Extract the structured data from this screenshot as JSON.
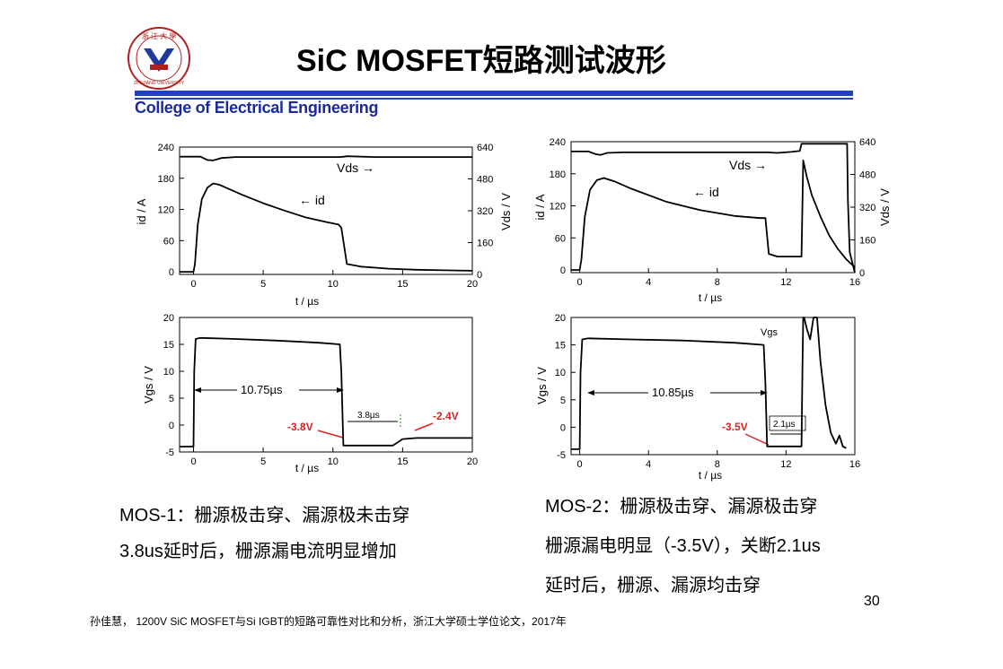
{
  "header": {
    "title": "SiC MOSFET短路测试波形",
    "college": "College of Electrical Engineering",
    "logo_text_top": "浙 江 大 學",
    "logo_text_bottom": "ZHEJIANG UNIVERSITY"
  },
  "captions": {
    "mos1_line1": "MOS-1：栅源极击穿、漏源极未击穿",
    "mos1_line2": "3.8us延时后，栅源漏电流明显增加",
    "mos2_line1": "MOS-2：栅源极击穿、漏源极击穿",
    "mos2_line2": "栅源漏电明显（-3.5V），关断2.1us",
    "mos2_line3": "延时后，栅源、漏源均击穿"
  },
  "page_number": "30",
  "citation": "孙佳慧， 1200V SiC MOSFET与Si IGBT的短路可靠性对比和分析，浙江大学硕士学位论文，2017年",
  "colors": {
    "accent": "#1f3fc6",
    "college_text": "#1a2a9a",
    "annotation_red": "#e02020",
    "annotation_green": "#2a8a2a"
  },
  "chart_data": [
    {
      "type": "line",
      "xlabel": "t / µs",
      "ylabel": "id / A",
      "y2label": "Vds / V",
      "xlim": [
        -1,
        20
      ],
      "xticks": [
        "0",
        "5",
        "10",
        "15",
        "20"
      ],
      "ylim": [
        -5,
        240
      ],
      "yticks": [
        "0",
        "60",
        "120",
        "180",
        "240"
      ],
      "y2lim": [
        0,
        640
      ],
      "y2ticks": [
        "0",
        "160",
        "320",
        "480",
        "640"
      ],
      "series": [
        {
          "name": "Vds",
          "axis": "right",
          "x": [
            -1,
            0.5,
            1.0,
            1.4,
            2.0,
            3,
            5,
            8,
            10.5,
            10.8,
            11,
            13,
            16,
            20
          ],
          "y": [
            592,
            592,
            575,
            573,
            585,
            590,
            590,
            590,
            590,
            592,
            594,
            590,
            590,
            590
          ]
        },
        {
          "name": "id",
          "axis": "left",
          "x": [
            -1,
            0,
            0.1,
            0.3,
            0.6,
            1.0,
            1.4,
            1.8,
            2.5,
            3.5,
            5,
            6.5,
            8,
            9.5,
            10.2,
            10.4,
            10.6,
            11,
            12,
            14,
            16,
            18,
            20
          ],
          "y": [
            0,
            0,
            15,
            90,
            140,
            162,
            170,
            168,
            160,
            148,
            132,
            118,
            105,
            96,
            92,
            91,
            85,
            15,
            10,
            6,
            4,
            3,
            2
          ]
        }
      ],
      "annotations": [
        "Vds →",
        "← id"
      ]
    },
    {
      "type": "line",
      "xlabel": "t / µs",
      "ylabel": "Vgs / V",
      "xlim": [
        -1,
        20
      ],
      "xticks": [
        "0",
        "5",
        "10",
        "15",
        "20"
      ],
      "ylim": [
        -5,
        20
      ],
      "yticks": [
        "-5",
        "0",
        "5",
        "10",
        "15",
        "20"
      ],
      "series": [
        {
          "name": "Vgs",
          "x": [
            -1,
            0,
            0.05,
            0.15,
            0.5,
            3,
            6,
            9,
            10.5,
            10.6,
            10.75,
            11.0,
            12,
            14.3,
            14.6,
            15,
            16,
            18,
            20
          ],
          "y": [
            -4,
            -4,
            10,
            16,
            16.2,
            16,
            15.7,
            15.3,
            15,
            10,
            -3.8,
            -3.8,
            -3.8,
            -3.8,
            -3.3,
            -2.6,
            -2.4,
            -2.4,
            -2.4
          ]
        }
      ],
      "annotations": [
        "10.75µs",
        "3.8µs",
        "-3.8V",
        "-2.4V"
      ]
    },
    {
      "type": "line",
      "xlabel": "t / µs",
      "ylabel": "id / A",
      "y2label": "Vds / V",
      "xlim": [
        -0.5,
        16
      ],
      "xticks": [
        "0",
        "4",
        "8",
        "12",
        "16"
      ],
      "ylim": [
        -5,
        240
      ],
      "yticks": [
        "0",
        "60",
        "120",
        "180",
        "240"
      ],
      "y2lim": [
        0,
        640
      ],
      "y2ticks": [
        "0",
        "160",
        "320",
        "480",
        "640"
      ],
      "series": [
        {
          "name": "Vds",
          "axis": "right",
          "x": [
            -0.5,
            0.5,
            0.9,
            1.2,
            1.6,
            2.5,
            5,
            8,
            10.9,
            11.5,
            12.3,
            12.8,
            12.9,
            13.05,
            15.5,
            15.55,
            15.6,
            15.7,
            16
          ],
          "y": [
            592,
            592,
            580,
            575,
            585,
            588,
            588,
            588,
            588,
            585,
            590,
            595,
            630,
            630,
            630,
            630,
            350,
            100,
            0
          ]
        },
        {
          "name": "id",
          "axis": "left",
          "x": [
            -0.5,
            0,
            0.1,
            0.3,
            0.6,
            1.0,
            1.4,
            2,
            3,
            5,
            7,
            9,
            10.5,
            10.8,
            11.0,
            11.5,
            12.5,
            12.9,
            13.0,
            13.2,
            13.5,
            14,
            14.5,
            15,
            15.5,
            16
          ],
          "y": [
            0,
            0,
            20,
            100,
            150,
            168,
            172,
            166,
            152,
            128,
            112,
            101,
            97,
            97,
            30,
            25,
            25,
            25,
            205,
            175,
            140,
            100,
            65,
            40,
            20,
            5
          ]
        }
      ],
      "annotations": [
        "Vds →",
        "← id"
      ]
    },
    {
      "type": "line",
      "xlabel": "t / µs",
      "ylabel": "Vgs / V",
      "xlim": [
        -0.5,
        16
      ],
      "xticks": [
        "0",
        "4",
        "8",
        "12",
        "16"
      ],
      "ylim": [
        -5,
        20
      ],
      "yticks": [
        "-5",
        "0",
        "5",
        "10",
        "15",
        "20"
      ],
      "series": [
        {
          "name": "Vgs",
          "x": [
            -0.5,
            0,
            0.05,
            0.15,
            0.5,
            3,
            6,
            9,
            10.7,
            10.8,
            10.9,
            11.1,
            12.5,
            12.9,
            12.95,
            13.0,
            13.05,
            13.2,
            13.4,
            13.6,
            13.8,
            14.0,
            14.3,
            14.6,
            14.9,
            15.1,
            15.3,
            15.5
          ],
          "y": [
            -4,
            -4,
            10,
            16,
            16.2,
            16,
            15.8,
            15.4,
            15,
            8,
            -3.5,
            -3.5,
            -3.5,
            -3.5,
            10,
            20,
            20,
            18,
            16,
            20,
            20,
            12,
            4,
            -1,
            -3,
            -1.5,
            -3.5,
            -3.8
          ]
        }
      ],
      "annotations": [
        "10.85µs",
        "2.1µs",
        "-3.5V"
      ],
      "legend": "Vgs"
    }
  ]
}
